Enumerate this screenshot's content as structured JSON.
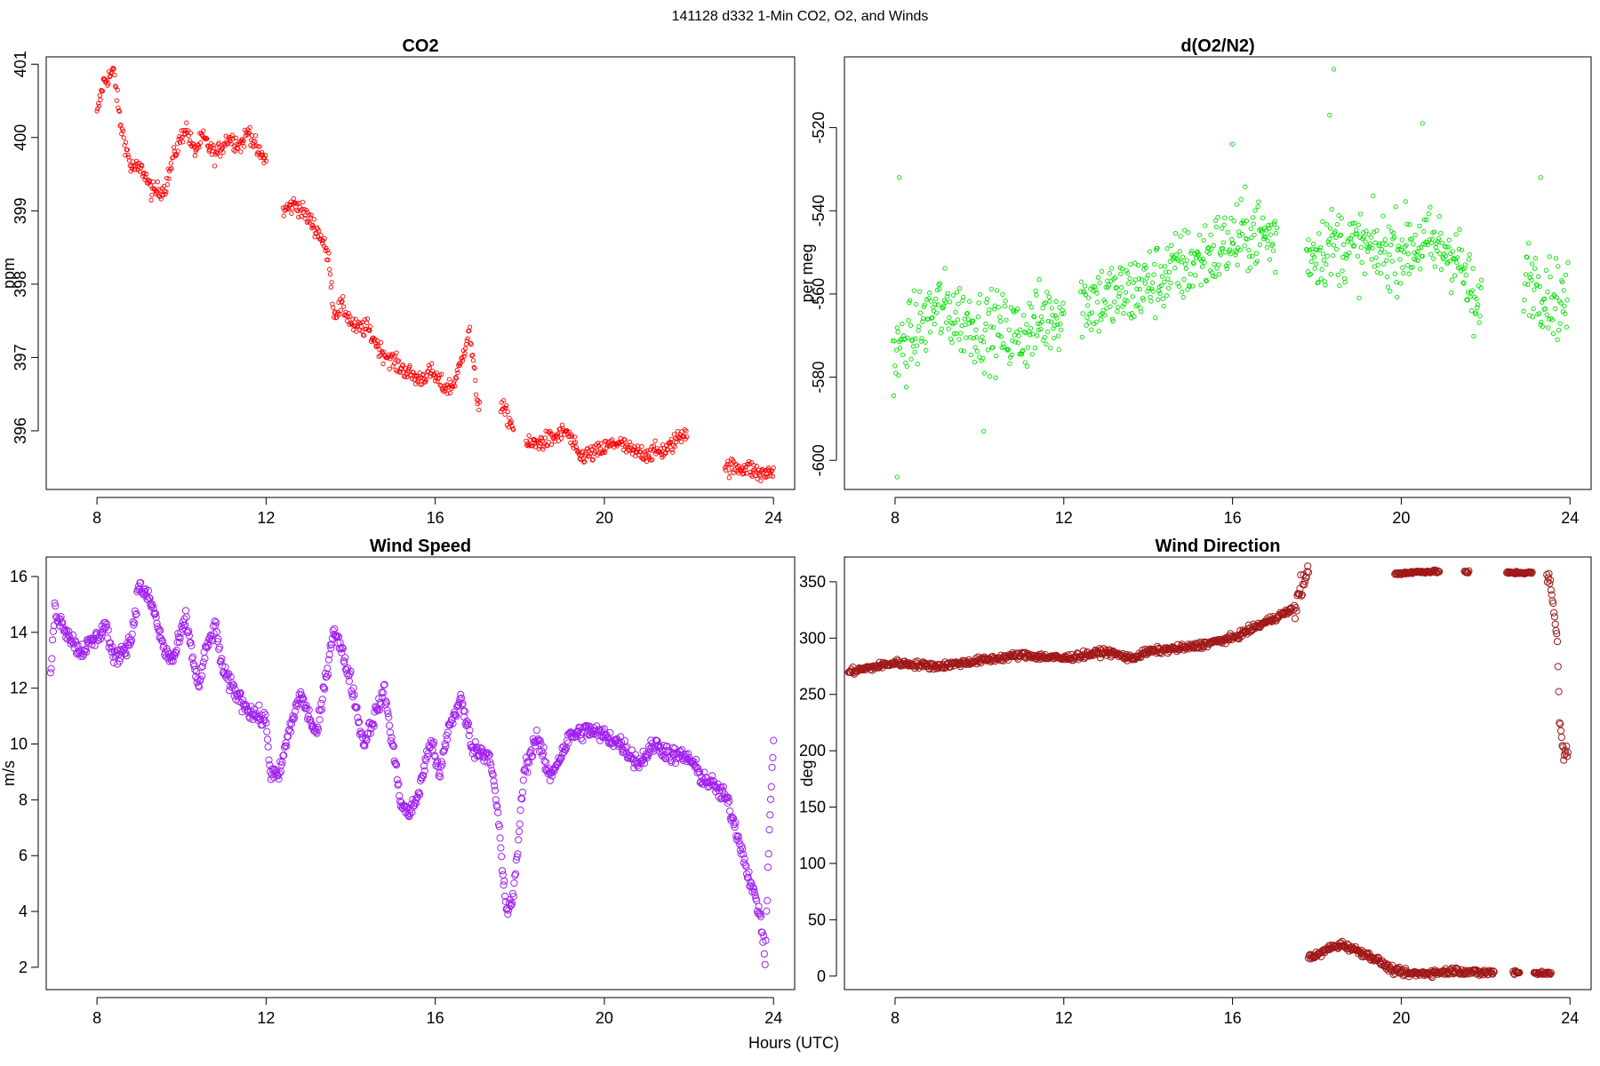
{
  "figure": {
    "title": "141128   d332   1-Min CO2, O2, and Winds",
    "xlabel": "Hours (UTC)"
  },
  "chart_data": [
    {
      "type": "scatter",
      "title": "CO2",
      "xlabel": "",
      "ylabel": "ppm",
      "xlim": [
        6.8,
        24.5
      ],
      "ylim": [
        395.2,
        401.1
      ],
      "xticks": [
        8,
        12,
        16,
        20,
        24
      ],
      "yticks": [
        396,
        397,
        398,
        399,
        400,
        401
      ],
      "color": "#ff0000",
      "marker": "small-open-circle",
      "series": [
        {
          "anchors": [
            [
              8.0,
              400.3
            ],
            [
              8.15,
              400.75
            ],
            [
              8.4,
              400.9
            ],
            [
              8.55,
              400.2
            ],
            [
              8.8,
              399.6
            ],
            [
              9.1,
              399.55
            ],
            [
              9.3,
              399.25
            ],
            [
              9.6,
              399.3
            ],
            [
              9.85,
              399.8
            ],
            [
              10.1,
              400.15
            ],
            [
              10.3,
              399.8
            ],
            [
              10.5,
              400.0
            ],
            [
              10.8,
              399.75
            ],
            [
              11.1,
              400.0
            ],
            [
              11.4,
              399.9
            ],
            [
              11.6,
              400.1
            ],
            [
              11.8,
              399.8
            ],
            [
              12.0,
              399.7
            ],
            [
              12.4,
              399.0
            ],
            [
              12.7,
              399.1
            ],
            [
              13.0,
              398.9
            ],
            [
              13.3,
              398.65
            ],
            [
              13.5,
              398.3
            ],
            [
              13.6,
              397.6
            ],
            [
              13.8,
              397.7
            ],
            [
              14.1,
              397.4
            ],
            [
              14.4,
              397.4
            ],
            [
              14.7,
              397.1
            ],
            [
              15.1,
              396.9
            ],
            [
              15.6,
              396.7
            ],
            [
              15.9,
              396.8
            ],
            [
              16.2,
              396.6
            ],
            [
              16.4,
              396.6
            ],
            [
              16.6,
              396.9
            ],
            [
              16.8,
              397.4
            ],
            [
              17.0,
              396.4
            ],
            [
              17.6,
              396.3
            ],
            [
              17.8,
              396.1
            ],
            [
              18.2,
              395.8
            ],
            [
              18.5,
              395.85
            ],
            [
              18.8,
              395.9
            ],
            [
              19.1,
              396.0
            ],
            [
              19.4,
              395.65
            ],
            [
              19.8,
              395.7
            ],
            [
              20.3,
              395.85
            ],
            [
              20.7,
              395.7
            ],
            [
              21.1,
              395.7
            ],
            [
              21.5,
              395.75
            ],
            [
              21.9,
              396.0
            ],
            [
              22.9,
              395.5
            ],
            [
              23.4,
              395.5
            ],
            [
              23.7,
              395.4
            ],
            [
              24.0,
              395.45
            ]
          ],
          "segments": [
            [
              8.0,
              12.0
            ],
            [
              12.4,
              13.1
            ],
            [
              13.1,
              17.05
            ],
            [
              17.55,
              17.85
            ],
            [
              18.15,
              21.95
            ],
            [
              22.85,
              24.0
            ]
          ],
          "noise": 0.12
        }
      ]
    },
    {
      "type": "scatter",
      "title": "d(O2/N2)",
      "xlabel": "",
      "ylabel": "per meg",
      "xlim": [
        6.8,
        24.5
      ],
      "ylim": [
        -607,
        -503
      ],
      "xticks": [
        8,
        12,
        16,
        20,
        24
      ],
      "yticks": [
        -600,
        -580,
        -560,
        -540,
        -520
      ],
      "color": "#00e000",
      "marker": "small-open-circle",
      "series": [
        {
          "anchors": [
            [
              8.0,
              -575
            ],
            [
              9.0,
              -563
            ],
            [
              10.0,
              -568
            ],
            [
              11.0,
              -570
            ],
            [
              11.5,
              -566
            ],
            [
              12.4,
              -562
            ],
            [
              13.5,
              -560
            ],
            [
              14.5,
              -555
            ],
            [
              15.5,
              -550
            ],
            [
              16.5,
              -545
            ],
            [
              17.0,
              -547
            ],
            [
              17.8,
              -550
            ],
            [
              18.5,
              -548
            ],
            [
              19.5,
              -550
            ],
            [
              20.5,
              -548
            ],
            [
              21.3,
              -550
            ],
            [
              21.8,
              -565
            ],
            [
              23.0,
              -555
            ],
            [
              23.5,
              -560
            ],
            [
              23.9,
              -562
            ]
          ],
          "segments": [
            [
              7.95,
              12.0
            ],
            [
              12.4,
              17.05
            ],
            [
              17.75,
              21.9
            ],
            [
              22.9,
              23.95
            ]
          ],
          "noise": 9,
          "outliers": [
            [
              8.05,
              -604
            ],
            [
              8.1,
              -532
            ],
            [
              18.4,
              -506
            ],
            [
              18.3,
              -517
            ],
            [
              20.5,
              -519
            ],
            [
              16.0,
              -524
            ],
            [
              23.3,
              -532
            ],
            [
              10.1,
              -593
            ]
          ]
        }
      ]
    },
    {
      "type": "scatter",
      "title": "Wind Speed",
      "xlabel": "",
      "ylabel": "m/s",
      "xlim": [
        6.8,
        24.5
      ],
      "ylim": [
        1.2,
        16.7
      ],
      "xticks": [
        8,
        12,
        16,
        20,
        24
      ],
      "yticks": [
        2,
        4,
        6,
        8,
        10,
        12,
        14,
        16
      ],
      "color": "#a020f0",
      "marker": "open-circle",
      "series": [
        {
          "anchors": [
            [
              6.9,
              12.4
            ],
            [
              7.0,
              14.8
            ],
            [
              7.3,
              14.0
            ],
            [
              7.6,
              13.3
            ],
            [
              8.0,
              13.8
            ],
            [
              8.2,
              14.3
            ],
            [
              8.4,
              13.0
            ],
            [
              8.8,
              13.7
            ],
            [
              9.0,
              15.7
            ],
            [
              9.3,
              15.0
            ],
            [
              9.6,
              13.3
            ],
            [
              9.8,
              13.0
            ],
            [
              10.1,
              14.5
            ],
            [
              10.4,
              12.0
            ],
            [
              10.6,
              13.5
            ],
            [
              10.8,
              14.2
            ],
            [
              11.0,
              12.5
            ],
            [
              11.3,
              11.8
            ],
            [
              11.6,
              11.2
            ],
            [
              12.0,
              10.8
            ],
            [
              12.1,
              9.0
            ],
            [
              12.3,
              8.8
            ],
            [
              12.5,
              10.2
            ],
            [
              12.8,
              11.8
            ],
            [
              13.2,
              10.3
            ],
            [
              13.6,
              14.2
            ],
            [
              14.0,
              12.3
            ],
            [
              14.3,
              10.0
            ],
            [
              14.8,
              11.9
            ],
            [
              15.2,
              7.8
            ],
            [
              15.4,
              7.5
            ],
            [
              15.6,
              8.2
            ],
            [
              15.9,
              10.2
            ],
            [
              16.1,
              8.8
            ],
            [
              16.3,
              10.5
            ],
            [
              16.6,
              11.6
            ],
            [
              16.9,
              9.8
            ],
            [
              17.3,
              9.6
            ],
            [
              17.5,
              7.2
            ],
            [
              17.6,
              5.2
            ],
            [
              17.7,
              4.0
            ],
            [
              17.85,
              4.5
            ],
            [
              18.1,
              9.0
            ],
            [
              18.4,
              10.3
            ],
            [
              18.7,
              8.8
            ],
            [
              19.2,
              10.3
            ],
            [
              19.6,
              10.5
            ],
            [
              20.0,
              10.3
            ],
            [
              20.4,
              10.0
            ],
            [
              20.8,
              9.3
            ],
            [
              21.2,
              10.0
            ],
            [
              21.6,
              9.6
            ],
            [
              22.0,
              9.5
            ],
            [
              22.3,
              8.8
            ],
            [
              22.6,
              8.5
            ],
            [
              22.9,
              8.0
            ],
            [
              23.2,
              6.5
            ],
            [
              23.5,
              4.8
            ],
            [
              23.7,
              3.8
            ],
            [
              23.8,
              2.2
            ],
            [
              23.9,
              7.0
            ],
            [
              24.0,
              10.0
            ]
          ],
          "segments": [
            [
              6.9,
              24.0
            ]
          ],
          "noise": 0.3
        }
      ]
    },
    {
      "type": "scatter",
      "title": "Wind Direction",
      "xlabel": "",
      "ylabel": "deg",
      "xlim": [
        6.8,
        24.5
      ],
      "ylim": [
        -12,
        372
      ],
      "xticks": [
        8,
        12,
        16,
        20,
        24
      ],
      "yticks": [
        0,
        50,
        100,
        150,
        200,
        250,
        300,
        350
      ],
      "color": "#a01818",
      "marker": "open-circle",
      "series": [
        {
          "anchors": [
            [
              6.9,
              270
            ],
            [
              8.0,
              278
            ],
            [
              9.0,
              275
            ],
            [
              10.0,
              280
            ],
            [
              11.0,
              285
            ],
            [
              12.0,
              282
            ],
            [
              13.0,
              288
            ],
            [
              13.6,
              282
            ],
            [
              14.0,
              288
            ],
            [
              15.0,
              292
            ],
            [
              16.0,
              300
            ],
            [
              17.0,
              318
            ],
            [
              17.4,
              325
            ]
          ],
          "segments": [
            [
              6.9,
              17.4
            ]
          ],
          "noise": 3
        },
        {
          "anchors": [
            [
              17.45,
              320
            ],
            [
              17.6,
              345
            ],
            [
              17.8,
              356
            ]
          ],
          "segments": [
            [
              17.45,
              17.8
            ]
          ],
          "noise": 10
        },
        {
          "anchors": [
            [
              18.0,
              18
            ],
            [
              18.3,
              25
            ],
            [
              18.6,
              28
            ],
            [
              19.0,
              22
            ],
            [
              19.4,
              15
            ],
            [
              19.8,
              5
            ],
            [
              20.2,
              2
            ],
            [
              20.8,
              3
            ],
            [
              21.3,
              5
            ],
            [
              21.8,
              3
            ],
            [
              22.2,
              3
            ]
          ],
          "segments": [
            [
              17.8,
              22.2
            ]
          ],
          "noise": 3
        },
        {
          "anchors": [
            [
              19.8,
              357
            ],
            [
              20.5,
              359
            ],
            [
              21.2,
              359
            ],
            [
              22.0,
              358
            ],
            [
              23.0,
              358
            ]
          ],
          "segments": [
            [
              19.85,
              20.9
            ],
            [
              21.5,
              21.6
            ],
            [
              22.5,
              23.1
            ]
          ],
          "noise": 1.2
        },
        {
          "anchors": [
            [
              22.7,
              3
            ],
            [
              23.0,
              2
            ],
            [
              23.3,
              3
            ],
            [
              23.5,
              2
            ]
          ],
          "segments": [
            [
              22.65,
              22.8
            ],
            [
              23.15,
              23.55
            ]
          ],
          "noise": 2
        },
        {
          "anchors": [
            [
              23.5,
              355
            ],
            [
              23.6,
              330
            ],
            [
              23.7,
              300
            ],
            [
              23.75,
              230
            ],
            [
              23.85,
              195
            ],
            [
              23.95,
              200
            ]
          ],
          "segments": [
            [
              23.45,
              23.95
            ]
          ],
          "noise": 6
        }
      ]
    }
  ]
}
